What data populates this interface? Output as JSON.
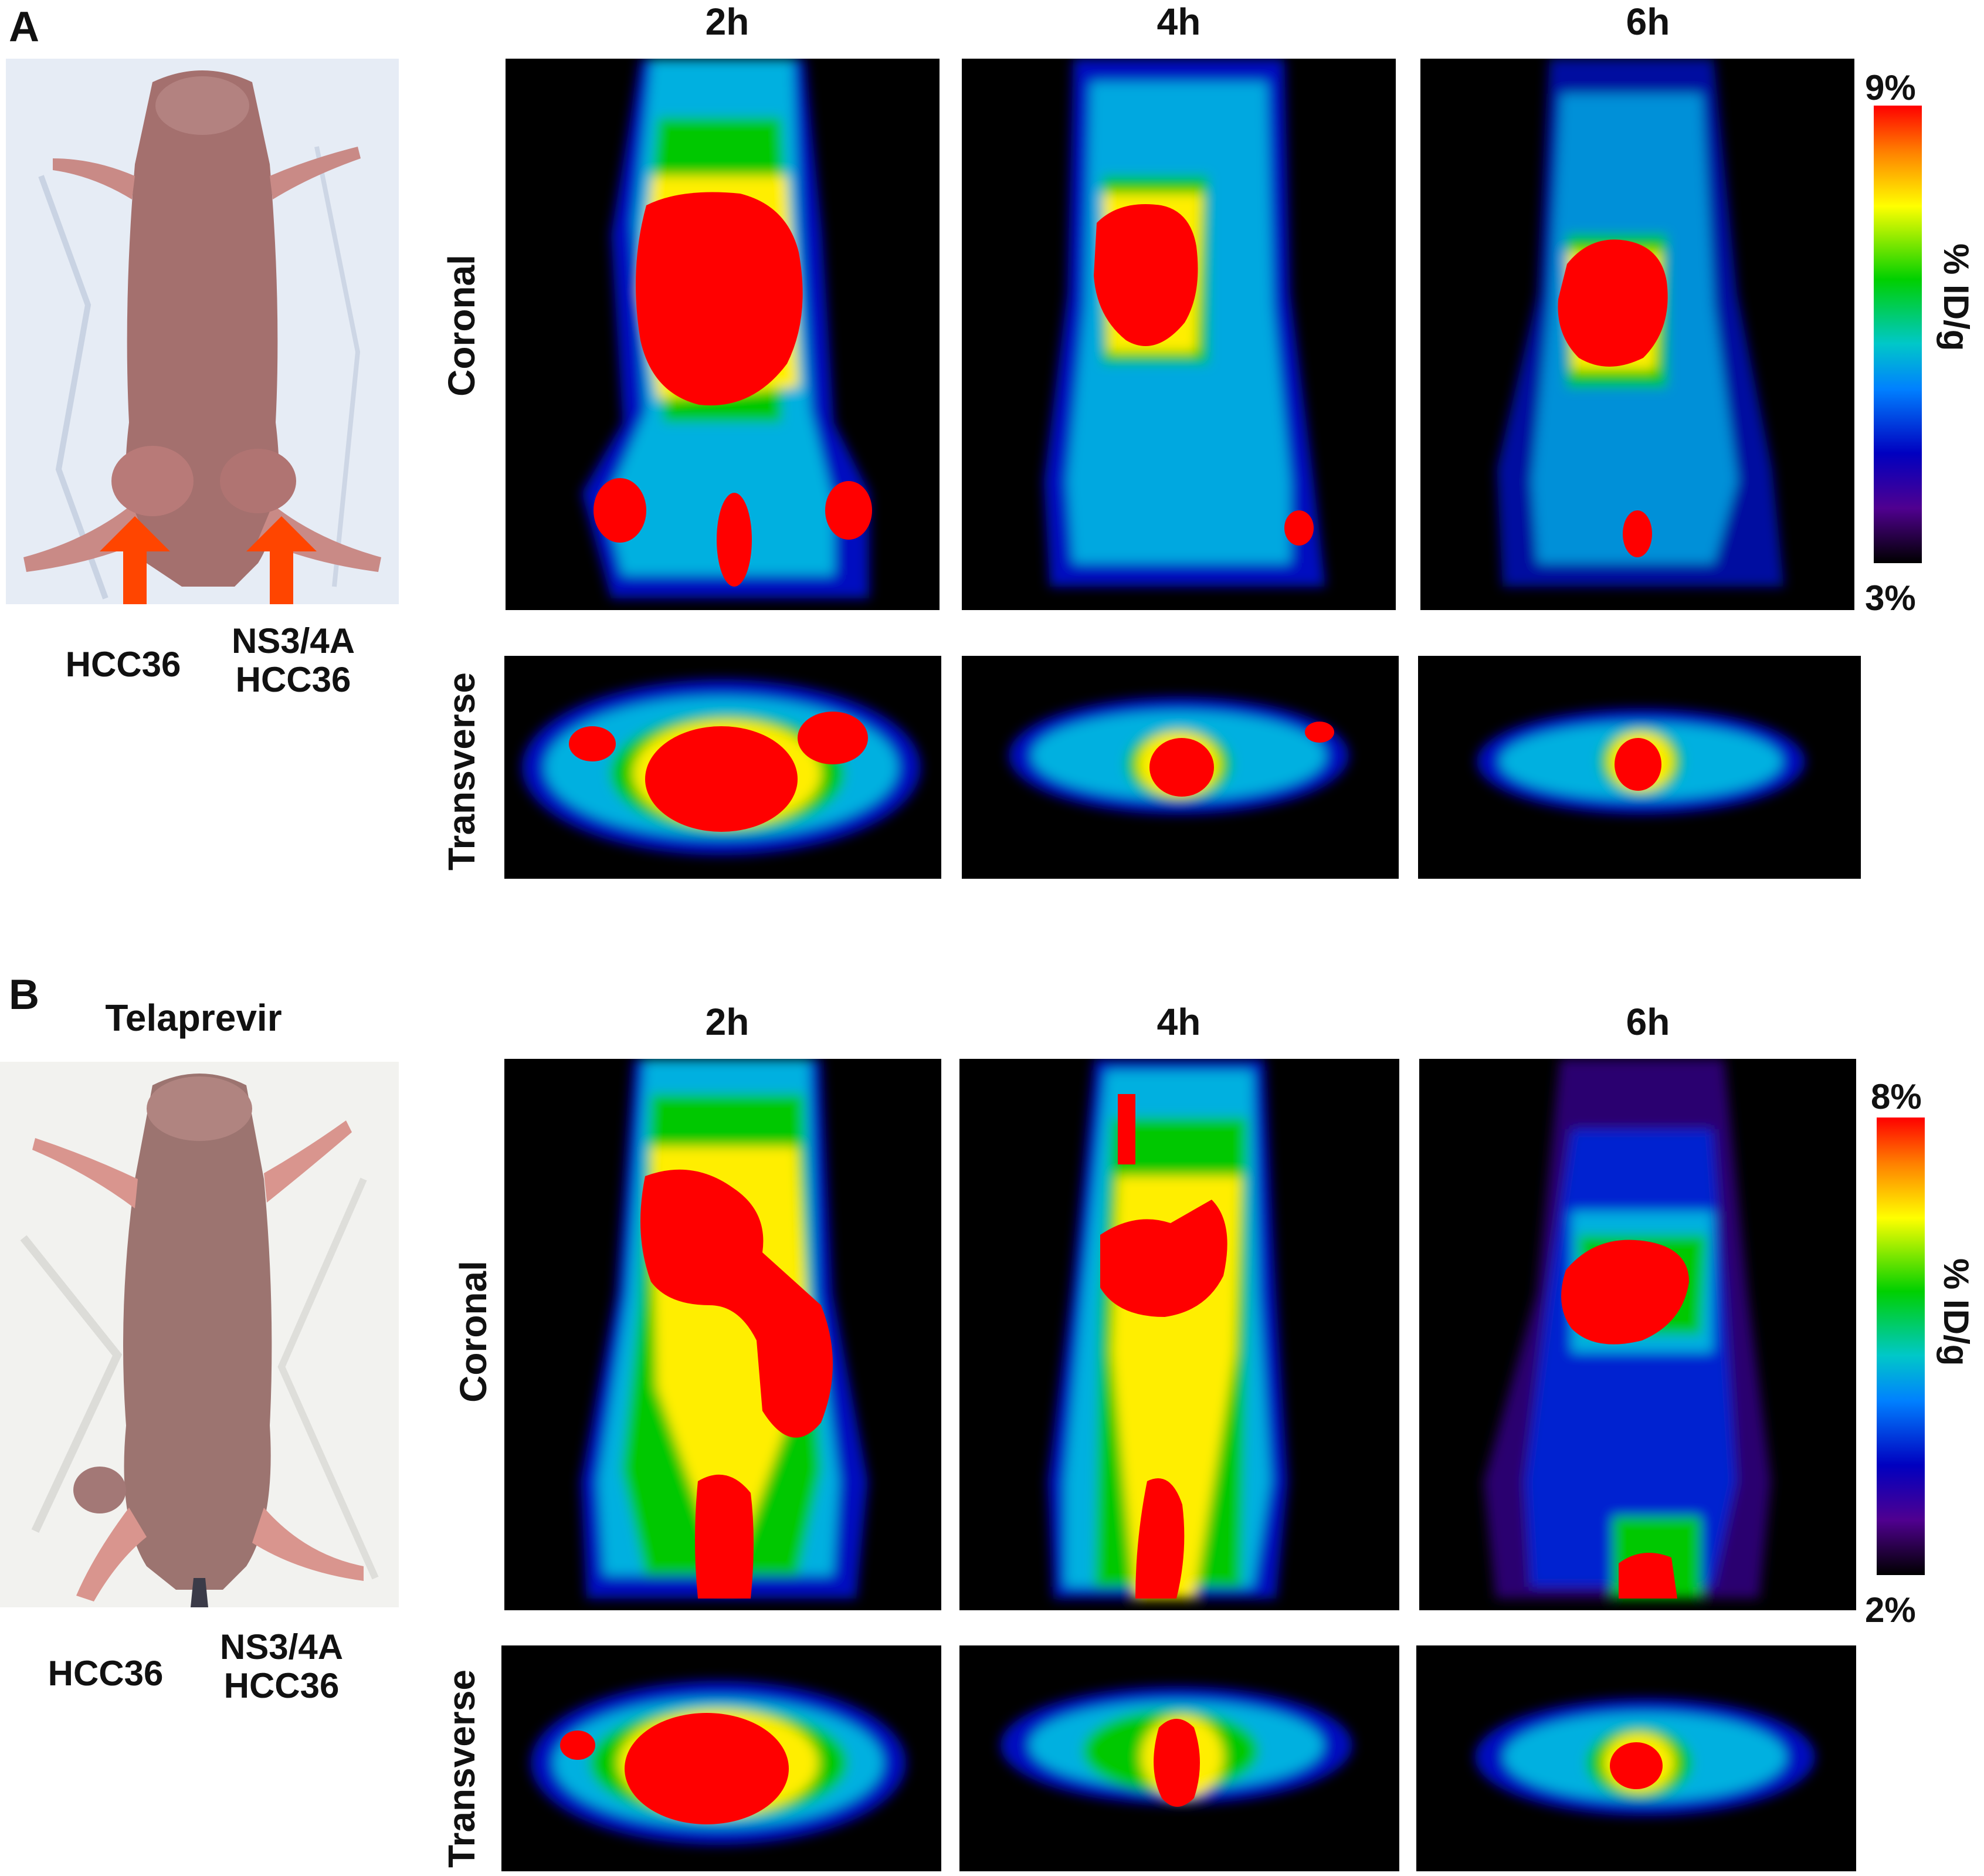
{
  "figure": {
    "panels": [
      {
        "letter": "A",
        "title": "",
        "left_label": "HCC36",
        "right_label_line1": "NS3/4A",
        "right_label_line2": "HCC36",
        "times": [
          "2h",
          "4h",
          "6h"
        ],
        "row_labels": [
          "Coronal",
          "Transverse"
        ],
        "colorbar": {
          "max": "9%",
          "min": "3%",
          "unit": "% ID/g"
        }
      },
      {
        "letter": "B",
        "title": "Telaprevir",
        "left_label": "HCC36",
        "right_label_line1": "NS3/4A",
        "right_label_line2": "HCC36",
        "times": [
          "2h",
          "4h",
          "6h"
        ],
        "row_labels": [
          "Coronal",
          "Transverse"
        ],
        "colorbar": {
          "max": "8%",
          "min": "2%",
          "unit": "% ID/g"
        }
      }
    ],
    "colors": {
      "hot": "#ff0000",
      "warm": "#ffff00",
      "mid": "#00d000",
      "cool": "#00c8ff",
      "cold": "#0000d0",
      "background": "#000000",
      "arrow": "#ff4500"
    }
  }
}
